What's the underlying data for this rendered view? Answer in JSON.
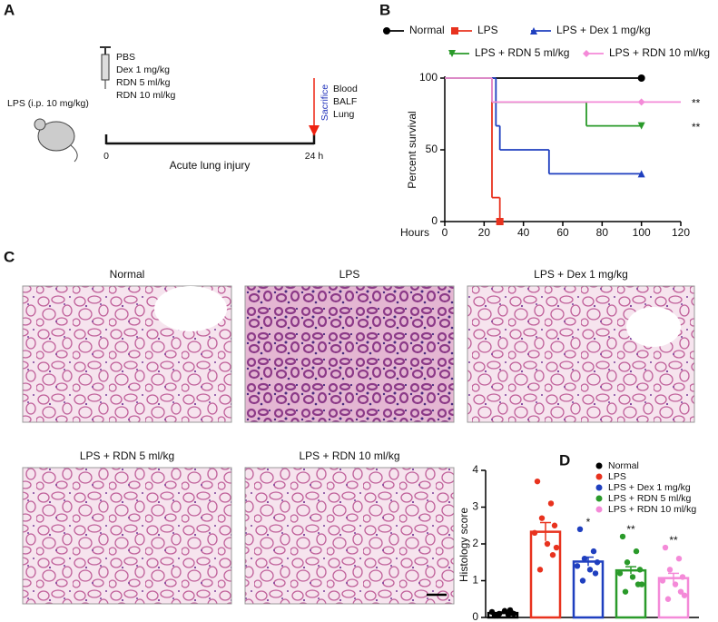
{
  "panel_labels": [
    "A",
    "B",
    "C",
    "D"
  ],
  "panel_a": {
    "treatment": "LPS (i.p. 10 mg/kg)",
    "drugs": [
      "PBS",
      "Dex 1 mg/kg",
      "RDN 5 ml/kg",
      "RDN 10 ml/kg"
    ],
    "sacrifice": "Sacrifice",
    "samples": [
      "Blood",
      "BALF",
      "Lung"
    ],
    "t_start": "0",
    "t_end": "24 h",
    "timeline_label": "Acute lung injury"
  },
  "panel_c": {
    "titles": [
      "Normal",
      "LPS",
      "LPS + Dex 1 mg/kg",
      "LPS + RDN 5 ml/kg",
      "LPS + RDN 10 ml/kg"
    ]
  },
  "chart_data": [
    {
      "type": "step",
      "y_label": "Percent survival",
      "x_label": "Hours",
      "xlim": [
        0,
        120
      ],
      "xticks": [
        0,
        20,
        40,
        60,
        80,
        100,
        120
      ],
      "ylim": [
        0,
        100
      ],
      "yticks": [
        0,
        50,
        100
      ],
      "series": [
        {
          "name": "Normal",
          "color": "#000000",
          "marker": "circle",
          "x": [
            0,
            100
          ],
          "values": [
            100,
            100
          ]
        },
        {
          "name": "LPS",
          "color": "#e8321e",
          "marker": "square",
          "x": [
            0,
            24,
            28
          ],
          "values": [
            100,
            16.7,
            0
          ]
        },
        {
          "name": "LPS + Dex 1 mg/kg",
          "color": "#1f3fbf",
          "marker": "triangle-up",
          "x": [
            0,
            26,
            28,
            53,
            100
          ],
          "values": [
            100,
            66.7,
            50,
            33.3,
            33.3
          ]
        },
        {
          "name": "LPS + RDN 5 ml/kg",
          "color": "#2a9a2a",
          "marker": "triangle-down",
          "x": [
            0,
            24,
            72,
            100
          ],
          "values": [
            100,
            83.3,
            66.7,
            66.7
          ],
          "annotation": "**"
        },
        {
          "name": "LPS + RDN 10 ml/kg",
          "color": "#f48ad8",
          "marker": "diamond",
          "x": [
            0,
            24,
            100,
            120
          ],
          "values": [
            100,
            83.3,
            83.3,
            83.3
          ],
          "annotation": "**"
        }
      ]
    },
    {
      "type": "bar",
      "y_label": "Histology score",
      "ylim": [
        0,
        4
      ],
      "yticks": [
        0,
        1,
        2,
        3,
        4
      ],
      "series": [
        {
          "name": "Normal",
          "color": "#000000",
          "values": [
            0.12
          ],
          "errors": [
            0.03
          ],
          "points": [
            0.05,
            0.08,
            0.1,
            0.12,
            0.15,
            0.18,
            0.2,
            0.05,
            0.1
          ]
        },
        {
          "name": "LPS",
          "color": "#e8321e",
          "values": [
            2.33
          ],
          "errors": [
            0.25
          ],
          "points": [
            3.7,
            3.1,
            2.7,
            2.5,
            2.3,
            2.0,
            1.7,
            1.3,
            1.9
          ]
        },
        {
          "name": "LPS + Dex 1 mg/kg",
          "color": "#1f3fbf",
          "values": [
            1.52
          ],
          "errors": [
            0.12
          ],
          "points": [
            2.4,
            1.8,
            1.6,
            1.5,
            1.4,
            1.3,
            1.2,
            1.0
          ],
          "annotation": "*"
        },
        {
          "name": "LPS + RDN 5 ml/kg",
          "color": "#2a9a2a",
          "values": [
            1.28
          ],
          "errors": [
            0.1
          ],
          "points": [
            2.2,
            1.8,
            1.5,
            1.3,
            1.2,
            1.1,
            0.9,
            0.7,
            0.9
          ],
          "annotation": "**"
        },
        {
          "name": "LPS + RDN 10 ml/kg",
          "color": "#f48ad8",
          "values": [
            1.07
          ],
          "errors": [
            0.13
          ],
          "points": [
            1.9,
            1.6,
            1.3,
            1.1,
            1.0,
            0.9,
            0.7,
            0.5,
            0.6
          ],
          "annotation": "**"
        }
      ]
    }
  ]
}
